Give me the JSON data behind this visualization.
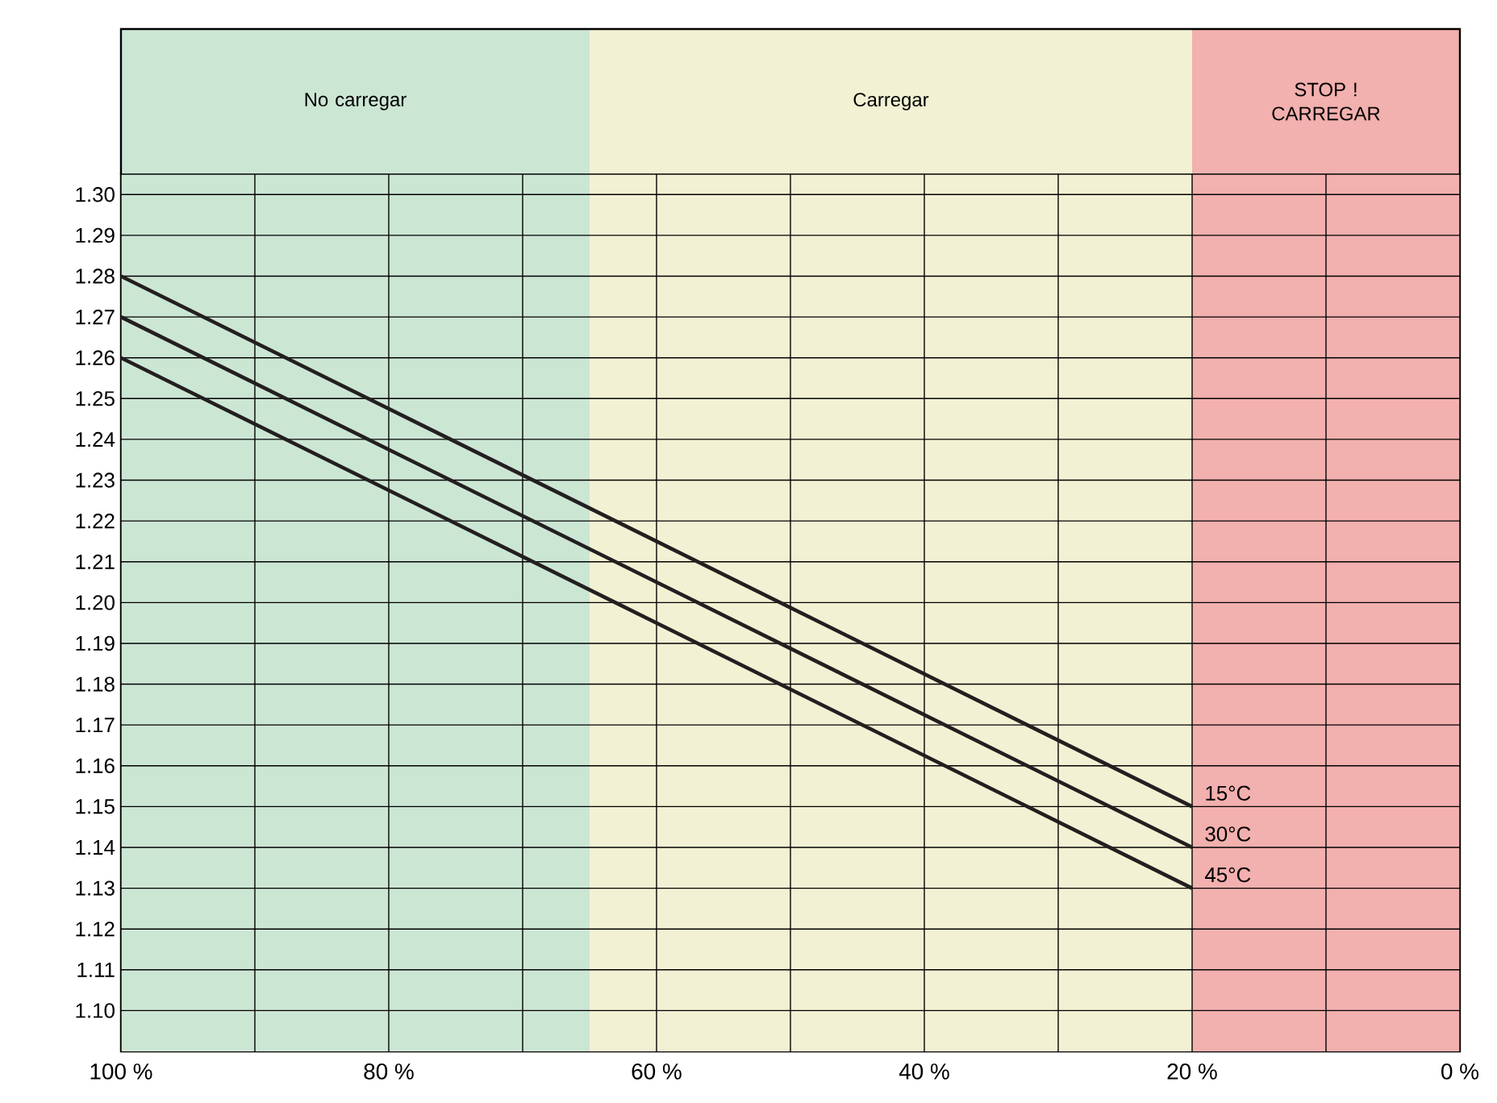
{
  "chart_data": {
    "type": "line",
    "x": [
      100,
      20
    ],
    "series": [
      {
        "name": "15°C",
        "color": "#231f20",
        "values": [
          1.28,
          1.15
        ]
      },
      {
        "name": "30°C",
        "color": "#231f20",
        "values": [
          1.27,
          1.14
        ]
      },
      {
        "name": "45°C",
        "color": "#231f20",
        "values": [
          1.26,
          1.13
        ]
      }
    ],
    "xlim": [
      100,
      0
    ],
    "ylim": [
      1.09,
      1.305
    ],
    "xticks": [
      {
        "value": 100,
        "label": "100 %"
      },
      {
        "value": 90,
        "label": null
      },
      {
        "value": 80,
        "label": "80 %"
      },
      {
        "value": 70,
        "label": null
      },
      {
        "value": 60,
        "label": "60 %"
      },
      {
        "value": 50,
        "label": null
      },
      {
        "value": 40,
        "label": "40 %"
      },
      {
        "value": 30,
        "label": null
      },
      {
        "value": 20,
        "label": "20 %"
      },
      {
        "value": 10,
        "label": null
      },
      {
        "value": 0,
        "label": "0 %"
      }
    ],
    "yticks": [
      {
        "value": 1.1,
        "label": "1.10"
      },
      {
        "value": 1.11,
        "label": "1.11"
      },
      {
        "value": 1.12,
        "label": "1.12"
      },
      {
        "value": 1.13,
        "label": "1.13"
      },
      {
        "value": 1.14,
        "label": "1.14"
      },
      {
        "value": 1.15,
        "label": "1.15"
      },
      {
        "value": 1.16,
        "label": "1.16"
      },
      {
        "value": 1.17,
        "label": "1.17"
      },
      {
        "value": 1.18,
        "label": "1.18"
      },
      {
        "value": 1.19,
        "label": "1.19"
      },
      {
        "value": 1.2,
        "label": "1.20"
      },
      {
        "value": 1.21,
        "label": "1.21"
      },
      {
        "value": 1.22,
        "label": "1.22"
      },
      {
        "value": 1.23,
        "label": "1.23"
      },
      {
        "value": 1.24,
        "label": "1.24"
      },
      {
        "value": 1.25,
        "label": "1.25"
      },
      {
        "value": 1.26,
        "label": "1.26"
      },
      {
        "value": 1.27,
        "label": "1.27"
      },
      {
        "value": 1.28,
        "label": "1.28"
      },
      {
        "value": 1.29,
        "label": "1.29"
      },
      {
        "value": 1.3,
        "label": "1.30"
      }
    ],
    "bands": [
      {
        "axis": "x",
        "from": 100,
        "to": 65,
        "label": "No carregar",
        "color": "#cce6d4"
      },
      {
        "axis": "x",
        "from": 65,
        "to": 20,
        "label": "Carregar",
        "color": "#f2f1d3"
      },
      {
        "axis": "x",
        "from": 20,
        "to": 0,
        "label": "STOP ! CARREGAR",
        "color": "#f2b0ae"
      }
    ],
    "grid": true,
    "legend": false,
    "line_style": "solid",
    "marker": "none"
  }
}
